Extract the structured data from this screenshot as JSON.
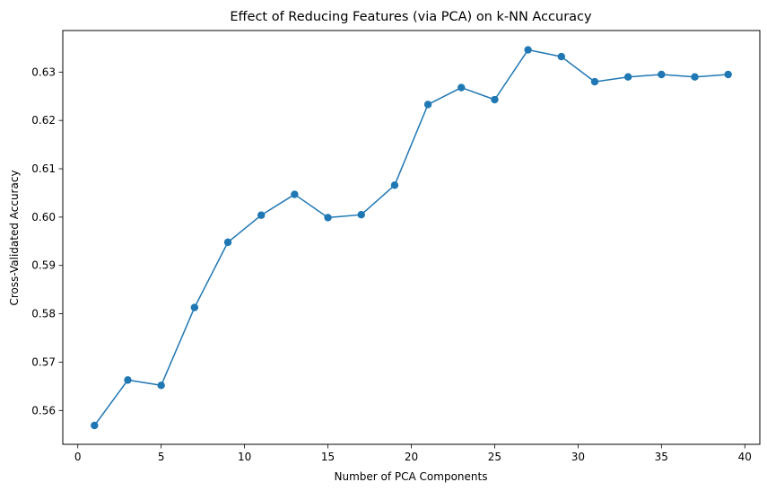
{
  "chart_data": {
    "type": "line",
    "title": "Effect of Reducing Features (via PCA) on k-NN Accuracy",
    "xlabel": "Number of PCA Components",
    "ylabel": "Cross-Validated Accuracy",
    "xlim": [
      -0.9,
      40.9
    ],
    "ylim": [
      0.553,
      0.6386
    ],
    "xticks": [
      0,
      5,
      10,
      15,
      20,
      25,
      30,
      35,
      40
    ],
    "yticks": [
      0.56,
      0.57,
      0.58,
      0.59,
      0.6,
      0.61,
      0.62,
      0.63
    ],
    "ytick_labels": [
      "0.56",
      "0.57",
      "0.58",
      "0.59",
      "0.60",
      "0.61",
      "0.62",
      "0.63"
    ],
    "grid": false,
    "marker": "circle",
    "color": "#1f77b4",
    "series": [
      {
        "x": [
          1,
          3,
          5,
          7,
          9,
          11,
          13,
          15,
          17,
          19,
          21,
          23,
          25,
          27,
          29,
          31,
          33,
          35,
          37,
          39
        ],
        "y": [
          0.5569,
          0.5663,
          0.5652,
          0.5813,
          0.5948,
          0.6004,
          0.6047,
          0.5999,
          0.6005,
          0.6066,
          0.6233,
          0.6268,
          0.6243,
          0.6346,
          0.6332,
          0.628,
          0.629,
          0.6295,
          0.629,
          0.6295
        ]
      }
    ]
  }
}
